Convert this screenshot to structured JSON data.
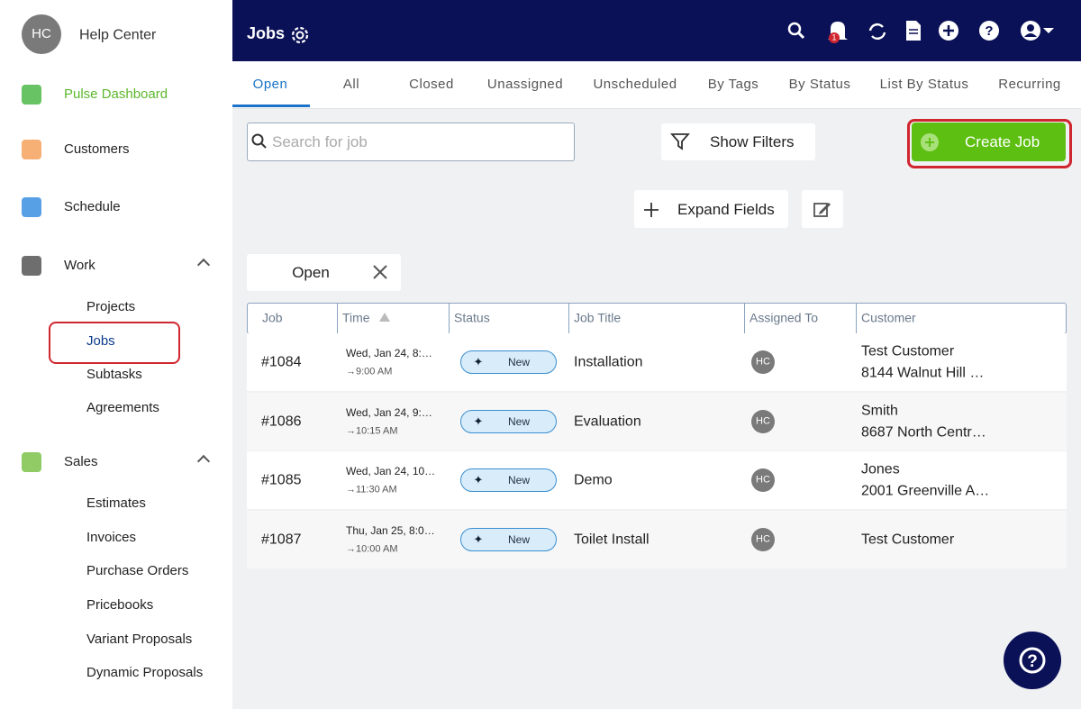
{
  "sidebar": {
    "avatar": "HC",
    "name": "Help Center",
    "items": [
      {
        "label": "Pulse Dashboard"
      },
      {
        "label": "Customers"
      },
      {
        "label": "Schedule"
      },
      {
        "label": "Work",
        "children": [
          "Projects",
          "Jobs",
          "Subtasks",
          "Agreements"
        ]
      },
      {
        "label": "Sales",
        "children": [
          "Estimates",
          "Invoices",
          "Purchase Orders",
          "Pricebooks",
          "Variant Proposals",
          "Dynamic Proposals"
        ]
      }
    ]
  },
  "header": {
    "title": "Jobs",
    "notifications": "1"
  },
  "tabs": [
    "Open",
    "All",
    "Closed",
    "Unassigned",
    "Unscheduled",
    "By Tags",
    "By Status",
    "List By Status",
    "Recurring"
  ],
  "toolbar": {
    "search_placeholder": "Search for job",
    "show_filters": "Show Filters",
    "create_job": "Create Job",
    "expand_fields": "Expand Fields"
  },
  "filters": [
    "Open"
  ],
  "table": {
    "columns": [
      "Job",
      "Time",
      "Status",
      "Job Title",
      "Assigned To",
      "Customer"
    ],
    "rows": [
      {
        "job": "#1084",
        "time": [
          "Wed, Jan 24, 8:…",
          "→9:00 AM"
        ],
        "status": "New",
        "title": "Installation",
        "assigned": "HC",
        "customer": [
          "Test Customer",
          "8144 Walnut Hill …"
        ]
      },
      {
        "job": "#1086",
        "time": [
          "Wed, Jan 24, 9:…",
          "→10:15 AM"
        ],
        "status": "New",
        "title": "Evaluation",
        "assigned": "HC",
        "customer": [
          "Smith",
          "8687 North Centr…"
        ]
      },
      {
        "job": "#1085",
        "time": [
          "Wed, Jan 24, 10…",
          "→11:30 AM"
        ],
        "status": "New",
        "title": "Demo",
        "assigned": "HC",
        "customer": [
          "Jones",
          "2001 Greenville A…"
        ]
      },
      {
        "job": "#1087",
        "time": [
          "Thu, Jan 25, 8:0…",
          "→10:00 AM"
        ],
        "status": "New",
        "title": "Toilet Install",
        "assigned": "HC",
        "customer": [
          "Test Customer"
        ]
      }
    ]
  }
}
